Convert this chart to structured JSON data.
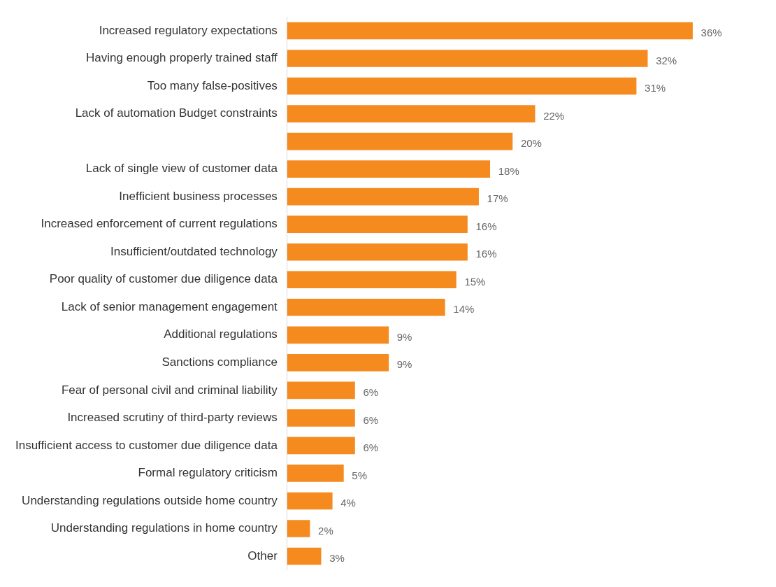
{
  "chart_data": {
    "type": "bar",
    "orientation": "horizontal",
    "categories": [
      "Increased regulatory expectations",
      "Having enough properly trained staff",
      "Too many false-positives",
      "Lack of automation Budget constraints",
      null,
      "Lack of single view of customer data",
      "Inefficient business processes",
      "Increased enforcement of current regulations",
      "Insufficient/outdated technology",
      "Poor quality of customer due diligence data",
      "Lack of senior management engagement",
      "Additional regulations",
      "Sanctions compliance",
      "Fear of personal civil and criminal liability",
      "Increased scrutiny of third-party reviews",
      "Insufficient access to customer due diligence data",
      "Formal regulatory criticism",
      "Understanding regulations outside home country",
      "Understanding regulations in home country",
      "Other"
    ],
    "values": [
      36,
      32,
      31,
      22,
      20,
      18,
      17,
      16,
      16,
      15,
      14,
      9,
      9,
      6,
      6,
      6,
      5,
      4,
      2,
      3
    ],
    "value_labels": [
      "36%",
      "32%",
      "31%",
      "22%",
      "20%",
      "18%",
      "17%",
      "16%",
      "16%",
      "15%",
      "14%",
      "9%",
      "9%",
      "6%",
      "6%",
      "6%",
      "5%",
      "4%",
      "2%",
      "3%"
    ],
    "color": "#f58a1f"
  }
}
